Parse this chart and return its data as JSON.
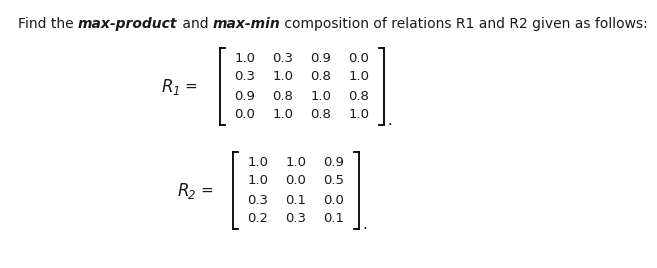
{
  "title_normal1": "Find the ",
  "title_bold1": "max-product",
  "title_normal2": " and ",
  "title_bold2": "max-min",
  "title_normal3": " composition of relations R1 and R2 given as follows:",
  "R1_matrix": [
    [
      "1.0",
      "0.3",
      "0.9",
      "0.0"
    ],
    [
      "0.3",
      "1.0",
      "0.8",
      "1.0"
    ],
    [
      "0.9",
      "0.8",
      "1.0",
      "0.8"
    ],
    [
      "0.0",
      "1.0",
      "0.8",
      "1.0"
    ]
  ],
  "R2_matrix": [
    [
      "1.0",
      "1.0",
      "0.9"
    ],
    [
      "1.0",
      "0.0",
      "0.5"
    ],
    [
      "0.3",
      "0.1",
      "0.0"
    ],
    [
      "0.2",
      "0.3",
      "0.1"
    ]
  ],
  "bg_color": "#ffffff",
  "text_color": "#1a1a1a",
  "font_size_title": 10.0,
  "font_size_matrix": 9.5,
  "font_size_label": 12.0,
  "font_size_sub": 8.5
}
